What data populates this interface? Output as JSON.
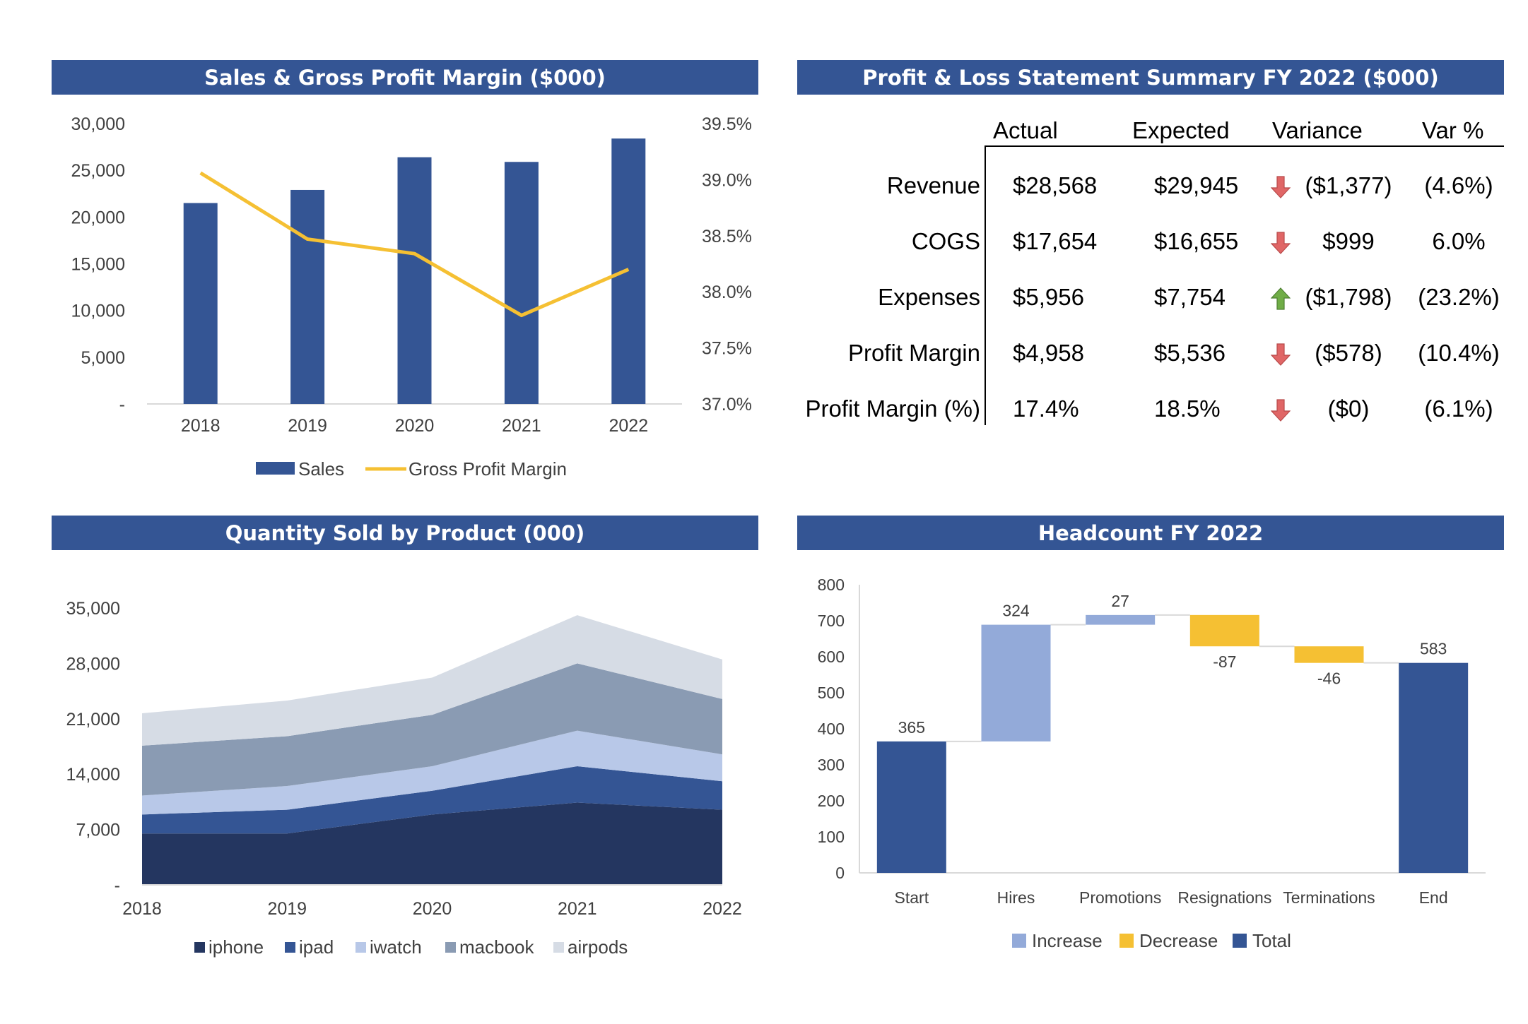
{
  "panels": {
    "sales_title": "Sales & Gross Profit Margin ($000)",
    "pl_title": "Profit & Loss Statement Summary FY 2022 ($000)",
    "qty_title": "Quantity Sold by Product (000)",
    "headcount_title": "Headcount FY 2022"
  },
  "colors": {
    "header": "#345594",
    "sales_bar": "#345594",
    "margin_line": "#F5C033",
    "increase": "#93AAD9",
    "decrease": "#F5C033",
    "total": "#345594",
    "arrow_up": "#70AD47",
    "arrow_down": "#E06666",
    "iphone": "#243660",
    "ipad": "#345594",
    "iwatch": "#B8C8E8",
    "macbook": "#8A9BB3",
    "airpods": "#D6DCE5"
  },
  "chart_data": [
    {
      "type": "bar",
      "combo": "bar+line",
      "categories": [
        "2018",
        "2019",
        "2020",
        "2021",
        "2022"
      ],
      "series": [
        {
          "name": "Sales",
          "type": "bar",
          "axis": "left",
          "values": [
            21500,
            22900,
            26400,
            25900,
            28400
          ]
        },
        {
          "name": "Gross Profit Margin",
          "type": "line",
          "axis": "right",
          "values": [
            0.3906,
            0.3847,
            0.3834,
            0.3779,
            0.382
          ]
        }
      ],
      "ylim": [
        0,
        30000
      ],
      "y_ticks": [
        "-",
        "5,000",
        "10,000",
        "15,000",
        "20,000",
        "25,000",
        "30,000"
      ],
      "y2lim": [
        0.37,
        0.395
      ],
      "y2_ticks": [
        "37.0%",
        "37.5%",
        "38.0%",
        "38.5%",
        "39.0%",
        "39.5%"
      ],
      "legend": "bottom",
      "grid": false
    },
    {
      "type": "table",
      "columns": [
        "Actual",
        "Expected",
        "Variance",
        "Var %"
      ],
      "rows": [
        {
          "label": "Revenue",
          "actual": "$28,568",
          "expected": "$29,945",
          "trend": "down",
          "variance": "($1,377)",
          "var_pct": "(4.6%)"
        },
        {
          "label": "COGS",
          "actual": "$17,654",
          "expected": "$16,655",
          "trend": "down",
          "variance": "$999",
          "var_pct": "6.0%"
        },
        {
          "label": "Expenses",
          "actual": "$5,956",
          "expected": "$7,754",
          "trend": "up",
          "variance": "($1,798)",
          "var_pct": "(23.2%)"
        },
        {
          "label": "Profit Margin",
          "actual": "$4,958",
          "expected": "$5,536",
          "trend": "down",
          "variance": "($578)",
          "var_pct": "(10.4%)"
        },
        {
          "label": "Profit Margin (%)",
          "actual": "17.4%",
          "expected": "18.5%",
          "trend": "down",
          "variance": "($0)",
          "var_pct": "(6.1%)"
        }
      ]
    },
    {
      "type": "area",
      "stacked": true,
      "x": [
        "2018",
        "2019",
        "2020",
        "2021",
        "2022"
      ],
      "series": [
        {
          "name": "iphone",
          "values": [
            6500,
            6500,
            8900,
            10400,
            9500
          ]
        },
        {
          "name": "ipad",
          "values": [
            2400,
            3000,
            3000,
            4600,
            3600
          ]
        },
        {
          "name": "iwatch",
          "values": [
            2400,
            3000,
            3100,
            4500,
            3400
          ]
        },
        {
          "name": "macbook",
          "values": [
            6300,
            6300,
            6500,
            8500,
            7000
          ]
        },
        {
          "name": "airpods",
          "values": [
            4100,
            4500,
            4700,
            6100,
            5000
          ]
        }
      ],
      "ylim": [
        0,
        35000
      ],
      "y_ticks": [
        "-",
        "7,000",
        "14,000",
        "21,000",
        "28,000",
        "35,000"
      ],
      "legend": "bottom",
      "grid": false
    },
    {
      "type": "bar",
      "waterfall": true,
      "categories": [
        "Start",
        "Hires",
        "Promotions",
        "Resignations",
        "Terminations",
        "End"
      ],
      "values": [
        365,
        324,
        27,
        -87,
        -46,
        583
      ],
      "kinds": [
        "total",
        "increase",
        "increase",
        "decrease",
        "decrease",
        "total"
      ],
      "data_labels": [
        "365",
        "324",
        "27",
        "-87",
        "-46",
        "583"
      ],
      "legend_labels": {
        "increase": "Increase",
        "decrease": "Decrease",
        "total": "Total"
      },
      "ylim": [
        0,
        800
      ],
      "y_ticks": [
        "0",
        "100",
        "200",
        "300",
        "400",
        "500",
        "600",
        "700",
        "800"
      ],
      "legend": "bottom",
      "grid": false
    }
  ]
}
